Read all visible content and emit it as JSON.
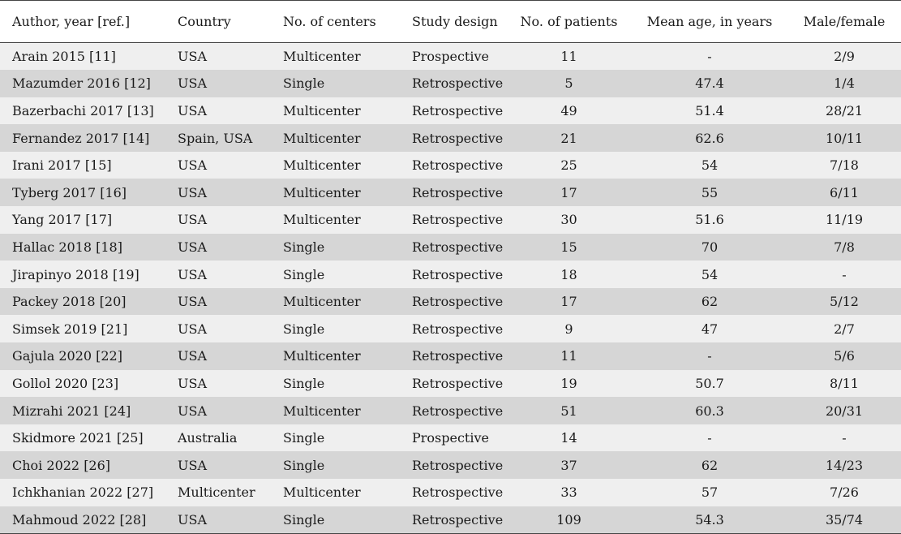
{
  "table": {
    "headers": [
      "Author, year [ref.]",
      "Country",
      "No. of centers",
      "Study design",
      "No. of patients",
      "Mean age, in years",
      "Male/female"
    ],
    "rows": [
      [
        "Arain 2015 [11]",
        "USA",
        "Multicenter",
        "Prospective",
        "11",
        "-",
        "2/9"
      ],
      [
        "Mazumder 2016 [12]",
        "USA",
        "Single",
        "Retrospective",
        "5",
        "47.4",
        "1/4"
      ],
      [
        "Bazerbachi 2017 [13]",
        "USA",
        "Multicenter",
        "Retrospective",
        "49",
        "51.4",
        "28/21"
      ],
      [
        "Fernandez 2017 [14]",
        "Spain, USA",
        "Multicenter",
        "Retrospective",
        "21",
        "62.6",
        "10/11"
      ],
      [
        "Irani 2017 [15]",
        "USA",
        "Multicenter",
        "Retrospective",
        "25",
        "54",
        "7/18"
      ],
      [
        "Tyberg 2017 [16]",
        "USA",
        "Multicenter",
        "Retrospective",
        "17",
        "55",
        "6/11"
      ],
      [
        "Yang 2017 [17]",
        "USA",
        "Multicenter",
        "Retrospective",
        "30",
        "51.6",
        "11/19"
      ],
      [
        "Hallac 2018 [18]",
        "USA",
        "Single",
        "Retrospective",
        "15",
        "70",
        "7/8"
      ],
      [
        "Jirapinyo 2018 [19]",
        "USA",
        "Single",
        "Retrospective",
        "18",
        "54",
        "-"
      ],
      [
        "Packey 2018 [20]",
        "USA",
        "Multicenter",
        "Retrospective",
        "17",
        "62",
        "5/12"
      ],
      [
        "Simsek 2019 [21]",
        "USA",
        "Single",
        "Retrospective",
        "9",
        "47",
        "2/7"
      ],
      [
        "Gajula 2020 [22]",
        "USA",
        "Multicenter",
        "Retrospective",
        "11",
        "-",
        "5/6"
      ],
      [
        "Gollol 2020 [23]",
        "USA",
        "Single",
        "Retrospective",
        "19",
        "50.7",
        "8/11"
      ],
      [
        "Mizrahi 2021 [24]",
        "USA",
        "Multicenter",
        "Retrospective",
        "51",
        "60.3",
        "20/31"
      ],
      [
        "Skidmore 2021 [25]",
        "Australia",
        "Single",
        "Prospective",
        "14",
        "-",
        "-"
      ],
      [
        "Choi 2022 [26]",
        "USA",
        "Single",
        "Retrospective",
        "37",
        "62",
        "14/23"
      ],
      [
        "Ichkhanian 2022 [27]",
        "Multicenter",
        "Multicenter",
        "Retrospective",
        "33",
        "57",
        "7/26"
      ],
      [
        "Mahmoud 2022 [28]",
        "USA",
        "Single",
        "Retrospective",
        "109",
        "54.3",
        "35/74"
      ]
    ]
  }
}
